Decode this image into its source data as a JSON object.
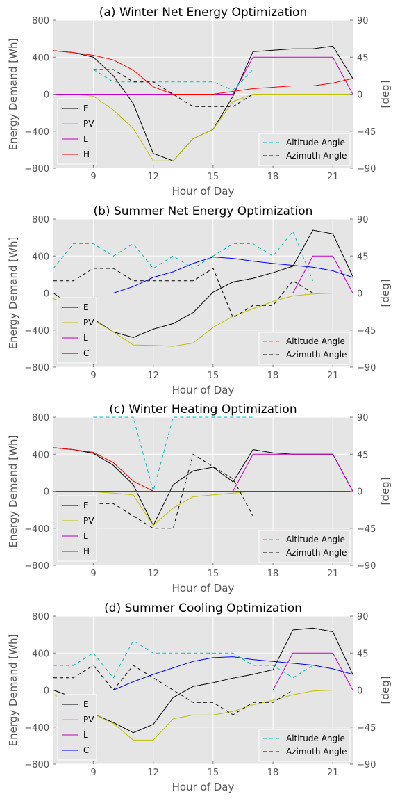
{
  "chart_data": [
    {
      "type": "line",
      "title": "(a) Winter Net Energy Optimization",
      "xlabel": "Hour of Day",
      "ylabel": "Energy Demand [Wh]",
      "y2label": "[deg]",
      "xlim": [
        7,
        22
      ],
      "ylim": [
        -800,
        800
      ],
      "y2lim": [
        -90,
        90
      ],
      "xticks": [
        "9",
        "12",
        "15",
        "18",
        "21"
      ],
      "yticks": [
        "800",
        "400",
        "0",
        "−400",
        "−800"
      ],
      "y2ticks": [
        "90",
        "45",
        "0",
        "−45",
        "−90"
      ],
      "grid": true,
      "legend_left_placement": "lower-left",
      "legend_right_placement": "lower-right",
      "series": [
        {
          "name": "E",
          "color": "#000000",
          "axis": "left",
          "style": "solid",
          "x": [
            7,
            8,
            9,
            10,
            11,
            12,
            13,
            14,
            15,
            16,
            17,
            18,
            19,
            20,
            21,
            22
          ],
          "values": [
            470,
            450,
            400,
            200,
            -100,
            -640,
            -720,
            -480,
            -380,
            -20,
            460,
            475,
            490,
            490,
            520,
            170
          ]
        },
        {
          "name": "PV",
          "color": "#bfbf00",
          "axis": "left",
          "style": "solid",
          "x": [
            7,
            8,
            9,
            10,
            11,
            12,
            13,
            14,
            15,
            16,
            17,
            18,
            19,
            20,
            21,
            22
          ],
          "values": [
            0,
            0,
            -20,
            -170,
            -370,
            -720,
            -720,
            -480,
            -380,
            -80,
            0,
            0,
            0,
            0,
            0,
            0
          ]
        },
        {
          "name": "L",
          "color": "#bf00bf",
          "axis": "left",
          "style": "solid",
          "x": [
            7,
            8,
            9,
            10,
            11,
            12,
            13,
            14,
            15,
            16,
            17,
            18,
            19,
            20,
            21,
            22
          ],
          "values": [
            0,
            0,
            0,
            0,
            0,
            0,
            0,
            0,
            0,
            0,
            400,
            400,
            400,
            400,
            400,
            0
          ]
        },
        {
          "name": "H",
          "color": "#ff0000",
          "axis": "left",
          "style": "solid",
          "x": [
            7,
            8,
            9,
            10,
            11,
            12,
            13,
            14,
            15,
            16,
            17,
            18,
            19,
            20,
            21,
            22
          ],
          "values": [
            470,
            450,
            420,
            370,
            260,
            80,
            0,
            0,
            0,
            30,
            60,
            75,
            90,
            90,
            120,
            170
          ]
        },
        {
          "name": "Altitude Angle",
          "color": "#00bfbf",
          "axis": "right",
          "style": "dashed",
          "x": [
            9,
            10,
            11,
            12,
            13,
            14,
            15,
            16,
            17
          ],
          "values": [
            30,
            15,
            15,
            15,
            15,
            15,
            15,
            5,
            30
          ]
        },
        {
          "name": "Azimuth Angle",
          "color": "#000000",
          "axis": "right",
          "style": "dashed",
          "x": [
            9,
            10,
            11,
            12,
            13,
            14,
            15,
            16,
            17
          ],
          "values": [
            30,
            30,
            15,
            15,
            0,
            -15,
            -15,
            -15,
            0
          ]
        }
      ],
      "legend_left": [
        "E",
        "PV",
        "L",
        "H"
      ],
      "legend_right": [
        "Altitude Angle",
        "Azimuth Angle"
      ]
    },
    {
      "type": "line",
      "title": "(b) Summer Net Energy Optimization",
      "xlabel": "Hour of Day",
      "ylabel": "Energy Demand [Wh]",
      "y2label": "[deg]",
      "xlim": [
        7,
        22
      ],
      "ylim": [
        -800,
        800
      ],
      "y2lim": [
        -90,
        90
      ],
      "xticks": [
        "9",
        "12",
        "15",
        "18",
        "21"
      ],
      "yticks": [
        "800",
        "400",
        "0",
        "−400",
        "−800"
      ],
      "y2ticks": [
        "90",
        "45",
        "0",
        "−45",
        "−90"
      ],
      "grid": true,
      "legend_left_placement": "lower-left",
      "legend_right_placement": "lower-right",
      "series": [
        {
          "name": "E",
          "color": "#000000",
          "axis": "left",
          "style": "solid",
          "x": [
            7,
            8,
            9,
            10,
            11,
            12,
            13,
            14,
            15,
            16,
            17,
            18,
            19,
            20,
            21,
            22
          ],
          "values": [
            0,
            -150,
            -280,
            -420,
            -480,
            -390,
            -330,
            -210,
            10,
            120,
            160,
            220,
            290,
            680,
            640,
            180
          ]
        },
        {
          "name": "PV",
          "color": "#bfbf00",
          "axis": "left",
          "style": "solid",
          "x": [
            7,
            8,
            9,
            10,
            11,
            12,
            13,
            14,
            15,
            16,
            17,
            18,
            19,
            20,
            21,
            22
          ],
          "values": [
            -60,
            -140,
            -290,
            -420,
            -560,
            -565,
            -575,
            -540,
            -370,
            -250,
            -170,
            -90,
            -30,
            -10,
            0,
            0
          ]
        },
        {
          "name": "L",
          "color": "#bf00bf",
          "axis": "left",
          "style": "solid",
          "x": [
            7,
            8,
            9,
            10,
            11,
            12,
            13,
            14,
            15,
            16,
            17,
            18,
            19,
            20,
            21,
            22
          ],
          "values": [
            0,
            0,
            0,
            0,
            0,
            0,
            0,
            0,
            0,
            0,
            0,
            0,
            0,
            400,
            400,
            0
          ]
        },
        {
          "name": "C",
          "color": "#0000ff",
          "axis": "left",
          "style": "solid",
          "x": [
            7,
            8,
            9,
            10,
            11,
            12,
            13,
            14,
            15,
            16,
            17,
            18,
            19,
            20,
            21,
            22
          ],
          "values": [
            0,
            0,
            0,
            0,
            70,
            170,
            230,
            320,
            390,
            375,
            345,
            320,
            300,
            280,
            240,
            170
          ]
        },
        {
          "name": "Altitude Angle",
          "color": "#00bfbf",
          "axis": "right",
          "style": "dashed",
          "x": [
            7,
            8,
            9,
            10,
            11,
            12,
            13,
            14,
            15,
            16,
            17,
            18,
            19,
            20
          ],
          "values": [
            30,
            60,
            60,
            45,
            60,
            30,
            45,
            30,
            45,
            60,
            60,
            45,
            75,
            15
          ]
        },
        {
          "name": "Azimuth Angle",
          "color": "#000000",
          "axis": "right",
          "style": "dashed",
          "x": [
            7,
            8,
            9,
            10,
            11,
            12,
            13,
            14,
            15,
            16,
            17,
            18,
            19,
            20
          ],
          "values": [
            15,
            15,
            30,
            30,
            15,
            15,
            15,
            15,
            30,
            -30,
            -15,
            -15,
            15,
            0
          ]
        }
      ],
      "legend_left": [
        "E",
        "PV",
        "L",
        "C"
      ],
      "legend_right": [
        "Altitude Angle",
        "Azimuth Angle"
      ]
    },
    {
      "type": "line",
      "title": "(c) Winter Heating Optimization",
      "xlabel": "Hour of Day",
      "ylabel": "Energy Demand [Wh]",
      "y2label": "[deg]",
      "xlim": [
        7,
        22
      ],
      "ylim": [
        -800,
        800
      ],
      "y2lim": [
        -90,
        90
      ],
      "xticks": [
        "9",
        "12",
        "15",
        "18",
        "21"
      ],
      "yticks": [
        "800",
        "400",
        "0",
        "−400",
        "−800"
      ],
      "y2ticks": [
        "90",
        "45",
        "0",
        "−45",
        "−90"
      ],
      "grid": true,
      "legend_left_placement": "lower-left",
      "legend_right_placement": "lower-right",
      "series": [
        {
          "name": "E",
          "color": "#000000",
          "axis": "left",
          "style": "solid",
          "x": [
            7,
            8,
            9,
            10,
            11,
            12,
            13,
            14,
            15,
            16,
            17,
            18,
            19,
            20,
            21,
            22
          ],
          "values": [
            470,
            450,
            410,
            280,
            70,
            -370,
            70,
            220,
            260,
            100,
            450,
            415,
            400,
            400,
            400,
            0
          ]
        },
        {
          "name": "PV",
          "color": "#bfbf00",
          "axis": "left",
          "style": "solid",
          "x": [
            7,
            8,
            9,
            10,
            11,
            12,
            13,
            14,
            15,
            16,
            17,
            18,
            19,
            20,
            21,
            22
          ],
          "values": [
            0,
            0,
            -5,
            -20,
            -40,
            -370,
            -180,
            -60,
            -40,
            -20,
            0,
            0,
            0,
            0,
            0,
            0
          ]
        },
        {
          "name": "L",
          "color": "#bf00bf",
          "axis": "left",
          "style": "solid",
          "x": [
            7,
            8,
            9,
            10,
            11,
            12,
            13,
            14,
            15,
            16,
            17,
            18,
            19,
            20,
            21,
            22
          ],
          "values": [
            0,
            0,
            0,
            0,
            0,
            0,
            0,
            0,
            0,
            0,
            400,
            400,
            400,
            400,
            400,
            0
          ]
        },
        {
          "name": "H",
          "color": "#ff0000",
          "axis": "left",
          "style": "solid",
          "x": [
            7,
            8,
            9,
            10,
            11,
            12,
            13,
            14,
            15,
            16,
            17,
            18,
            19,
            20,
            21,
            22
          ],
          "values": [
            470,
            450,
            420,
            310,
            110,
            0,
            0,
            0,
            0,
            0,
            0,
            0,
            0,
            0,
            0,
            0
          ]
        },
        {
          "name": "Altitude Angle",
          "color": "#00bfbf",
          "axis": "right",
          "style": "dashed",
          "x": [
            9,
            10,
            11,
            12,
            13,
            14,
            15,
            16,
            17
          ],
          "values": [
            90,
            90,
            90,
            0,
            90,
            90,
            90,
            90,
            90
          ]
        },
        {
          "name": "Azimuth Angle",
          "color": "#000000",
          "axis": "right",
          "style": "dashed",
          "x": [
            9,
            10,
            11,
            12,
            13,
            14,
            15,
            16,
            17
          ],
          "values": [
            -15,
            -15,
            -30,
            -45,
            -45,
            45,
            30,
            15,
            -30
          ]
        }
      ],
      "legend_left": [
        "E",
        "PV",
        "L",
        "H"
      ],
      "legend_right": [
        "Altitude Angle",
        "Azimuth Angle"
      ]
    },
    {
      "type": "line",
      "title": "(d) Summer Cooling Optimization",
      "xlabel": "Hour of Day",
      "ylabel": "Energy Demand [Wh]",
      "y2label": "[deg]",
      "xlim": [
        7,
        22
      ],
      "ylim": [
        -800,
        800
      ],
      "y2lim": [
        -90,
        90
      ],
      "xticks": [
        "9",
        "12",
        "15",
        "18",
        "21"
      ],
      "yticks": [
        "800",
        "400",
        "0",
        "−400",
        "−800"
      ],
      "y2ticks": [
        "90",
        "45",
        "0",
        "−45",
        "−90"
      ],
      "grid": true,
      "legend_left_placement": "lower-left",
      "legend_right_placement": "lower-right",
      "series": [
        {
          "name": "E",
          "color": "#000000",
          "axis": "left",
          "style": "solid",
          "x": [
            7,
            8,
            9,
            10,
            11,
            12,
            13,
            14,
            15,
            16,
            17,
            18,
            19,
            20,
            21,
            22
          ],
          "values": [
            0,
            -80,
            -260,
            -350,
            -460,
            -370,
            -80,
            40,
            80,
            130,
            170,
            220,
            650,
            670,
            630,
            170
          ]
        },
        {
          "name": "PV",
          "color": "#bfbf00",
          "axis": "left",
          "style": "solid",
          "x": [
            7,
            8,
            9,
            10,
            11,
            12,
            13,
            14,
            15,
            16,
            17,
            18,
            19,
            20,
            21,
            22
          ],
          "values": [
            -50,
            -130,
            -260,
            -360,
            -540,
            -540,
            -310,
            -270,
            -270,
            -230,
            -160,
            -110,
            -50,
            -10,
            0,
            0
          ]
        },
        {
          "name": "L",
          "color": "#bf00bf",
          "axis": "left",
          "style": "solid",
          "x": [
            7,
            8,
            9,
            10,
            11,
            12,
            13,
            14,
            15,
            16,
            17,
            18,
            19,
            20,
            21,
            22
          ],
          "values": [
            0,
            0,
            0,
            0,
            0,
            0,
            0,
            0,
            0,
            0,
            0,
            0,
            400,
            400,
            400,
            0
          ]
        },
        {
          "name": "C",
          "color": "#0000ff",
          "axis": "left",
          "style": "solid",
          "x": [
            7,
            8,
            9,
            10,
            11,
            12,
            13,
            14,
            15,
            16,
            17,
            18,
            19,
            20,
            21,
            22
          ],
          "values": [
            0,
            0,
            0,
            0,
            90,
            170,
            240,
            310,
            350,
            360,
            330,
            310,
            290,
            270,
            230,
            170
          ]
        },
        {
          "name": "Altitude Angle",
          "color": "#00bfbf",
          "axis": "right",
          "style": "dashed",
          "x": [
            7,
            8,
            9,
            10,
            11,
            12,
            13,
            14,
            15,
            16,
            17,
            18,
            19,
            20
          ],
          "values": [
            30,
            30,
            45,
            15,
            60,
            45,
            45,
            45,
            45,
            45,
            30,
            30,
            15,
            30
          ]
        },
        {
          "name": "Azimuth Angle",
          "color": "#000000",
          "axis": "right",
          "style": "dashed",
          "x": [
            7,
            8,
            9,
            10,
            11,
            12,
            13,
            14,
            15,
            16,
            17,
            18,
            19,
            20
          ],
          "values": [
            15,
            15,
            30,
            0,
            30,
            15,
            0,
            -15,
            -15,
            -30,
            -15,
            -15,
            0,
            0
          ]
        }
      ],
      "legend_left": [
        "E",
        "PV",
        "L",
        "C"
      ],
      "legend_right": [
        "Altitude Angle",
        "Azimuth Angle"
      ]
    }
  ]
}
